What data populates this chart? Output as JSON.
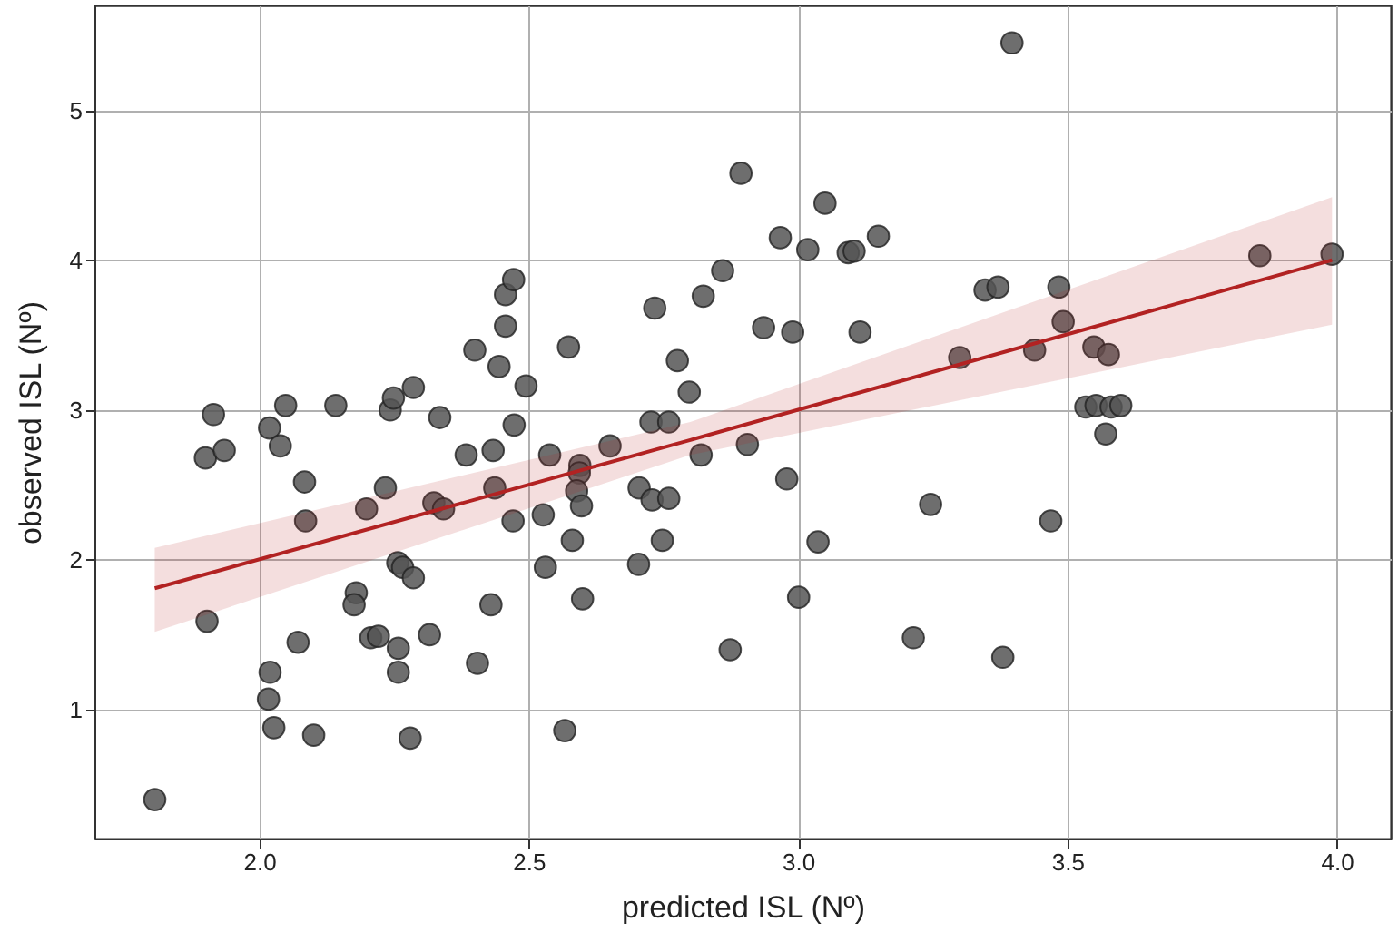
{
  "chart_data": {
    "type": "scatter",
    "xlabel": "predicted ISL (Nº)",
    "ylabel": "observed ISL (Nº)",
    "xlim": [
      1.694,
      4.1
    ],
    "ylim": [
      0.14,
      5.7
    ],
    "xticks": [
      {
        "value": 2,
        "label": "2.0"
      },
      {
        "value": 2.5,
        "label": "2.5"
      },
      {
        "value": 3,
        "label": "3.0"
      },
      {
        "value": 3.5,
        "label": "3.5"
      },
      {
        "value": 4,
        "label": "4.0"
      }
    ],
    "yticks": [
      1,
      2,
      3,
      4,
      5
    ],
    "grid": true,
    "series": [
      {
        "marker": "circle",
        "color": "#555555",
        "x": [
          1.9,
          1.915,
          1.935,
          2.019,
          2.039,
          2.049,
          2.142,
          2.243,
          2.249,
          2.286,
          2.335,
          2.384,
          2.4,
          2.434,
          2.445,
          2.457,
          2.457,
          2.472,
          2.473,
          2.495,
          2.539,
          2.574,
          2.595,
          2.651,
          2.727,
          2.734,
          2.76,
          2.776,
          2.798,
          2.82,
          2.824,
          2.86,
          3.397,
          2.894,
          3.05,
          2.967,
          3.018,
          3.093,
          3.104,
          3.149,
          2.936,
          2.99,
          3.115,
          3.857,
          3.991,
          3.347,
          3.371,
          3.484,
          3.492,
          3.3,
          3.439,
          3.549,
          3.576,
          3.534,
          3.553,
          3.581,
          3.599,
          3.571,
          2.906,
          2.979,
          3.246,
          3.037,
          3.469,
          3.001,
          2.874,
          3.214,
          3.38,
          2.084,
          2.086,
          2.199,
          2.234,
          2.324,
          2.342,
          2.437,
          2.471,
          2.527,
          2.594,
          2.589,
          2.598,
          2.705,
          2.729,
          2.76,
          2.581,
          2.748,
          2.704,
          2.531,
          2.6,
          2.43,
          2.257,
          2.266,
          2.286,
          2.18,
          2.176,
          1.903,
          2.072,
          2.207,
          2.221,
          2.258,
          2.258,
          2.316,
          2.405,
          2.02,
          2.017,
          2.027,
          2.101,
          2.28,
          2.567,
          1.806
        ],
        "values": [
          2.68,
          2.97,
          2.73,
          2.88,
          2.76,
          3.03,
          3.03,
          3.0,
          3.08,
          3.15,
          2.95,
          2.7,
          3.4,
          2.73,
          3.29,
          3.56,
          3.77,
          3.87,
          2.9,
          3.16,
          2.7,
          3.42,
          2.63,
          2.76,
          2.92,
          3.68,
          2.92,
          3.33,
          3.12,
          2.7,
          3.76,
          3.93,
          5.45,
          4.58,
          4.38,
          4.15,
          4.07,
          4.05,
          4.06,
          4.16,
          3.55,
          3.52,
          3.52,
          4.03,
          4.04,
          3.8,
          3.82,
          3.82,
          3.59,
          3.35,
          3.4,
          3.42,
          3.37,
          3.02,
          3.03,
          3.02,
          3.03,
          2.84,
          2.77,
          2.54,
          2.37,
          2.12,
          2.26,
          1.75,
          1.4,
          1.48,
          1.35,
          2.52,
          2.26,
          2.34,
          2.48,
          2.38,
          2.34,
          2.48,
          2.26,
          2.3,
          2.58,
          2.46,
          2.36,
          2.48,
          2.4,
          2.41,
          2.13,
          2.13,
          1.97,
          1.95,
          1.74,
          1.7,
          1.98,
          1.95,
          1.88,
          1.78,
          1.7,
          1.59,
          1.45,
          1.48,
          1.49,
          1.41,
          1.25,
          1.5,
          1.31,
          1.25,
          1.07,
          0.88,
          0.83,
          0.81,
          0.86,
          0.4
        ]
      },
      {
        "type": "line",
        "color": "#b22222",
        "x": [
          1.806,
          2.8,
          3.991
        ],
        "values": [
          1.81,
          2.8,
          4.0
        ],
        "lower": [
          1.52,
          2.7,
          3.57
        ],
        "upper": [
          2.08,
          2.92,
          4.42
        ]
      }
    ]
  }
}
